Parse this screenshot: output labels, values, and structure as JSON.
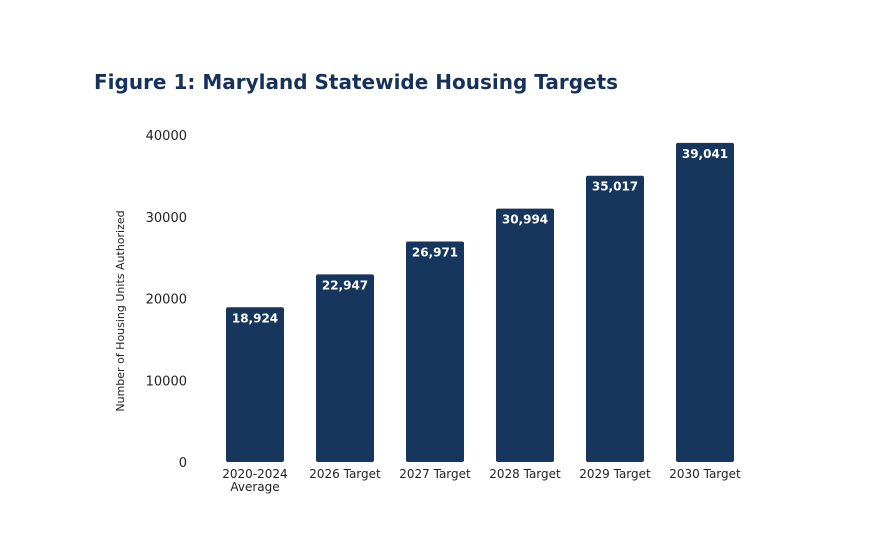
{
  "header": {
    "title": "Figure 1: Maryland Statewide Housing Targets"
  },
  "chart_data": {
    "type": "bar",
    "title": "Figure 1: Maryland Statewide Housing Targets",
    "xlabel": "",
    "ylabel": "Number of Housing Units  Authorized",
    "categories": [
      [
        "2020-2024",
        "Average"
      ],
      [
        "2026 Target"
      ],
      [
        "2027 Target"
      ],
      [
        "2028 Target"
      ],
      [
        "2029 Target"
      ],
      [
        "2030 Target"
      ]
    ],
    "values": [
      18924,
      22947,
      26971,
      30994,
      35017,
      39041
    ],
    "value_labels": [
      "18,924",
      "22,947",
      "26,971",
      "30,994",
      "35,017",
      "39,041"
    ],
    "ylim": [
      0,
      40000
    ],
    "yticks": [
      0,
      10000,
      20000,
      30000,
      40000
    ],
    "ytick_labels": [
      "0",
      "10000",
      "20000",
      "30000",
      "40000"
    ],
    "grid": false,
    "legend": "none",
    "bar_color": "#17365d"
  }
}
